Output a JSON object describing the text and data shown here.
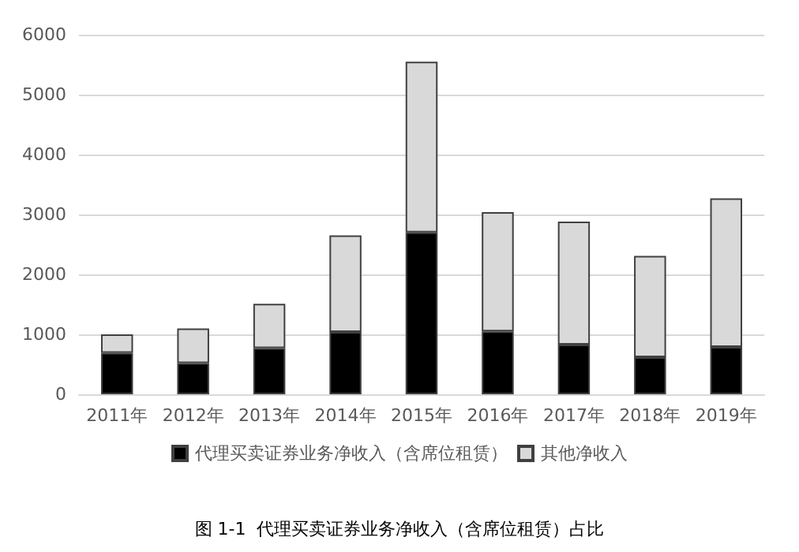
{
  "chart_data": {
    "type": "bar",
    "title": "图 1-1  代理买卖证券业务净收入（含席位租赁）占比",
    "stacked": true,
    "categories": [
      "2011年",
      "2012年",
      "2013年",
      "2014年",
      "2015年",
      "2016年",
      "2017年",
      "2018年",
      "2019年"
    ],
    "series": [
      {
        "name": "代理买卖证券业务净收入（含席位租赁）",
        "color": "#000000",
        "values": [
          690,
          520,
          770,
          1040,
          2700,
          1050,
          830,
          620,
          790
        ]
      },
      {
        "name": "其他净收入",
        "color": "#d9d9d9",
        "values": [
          310,
          580,
          740,
          1610,
          2850,
          1990,
          2050,
          1690,
          2480
        ]
      }
    ],
    "ylim": [
      0,
      6000
    ],
    "yticks": [
      0,
      1000,
      2000,
      3000,
      4000,
      5000,
      6000
    ],
    "grid": "y",
    "legend": "bottom"
  }
}
